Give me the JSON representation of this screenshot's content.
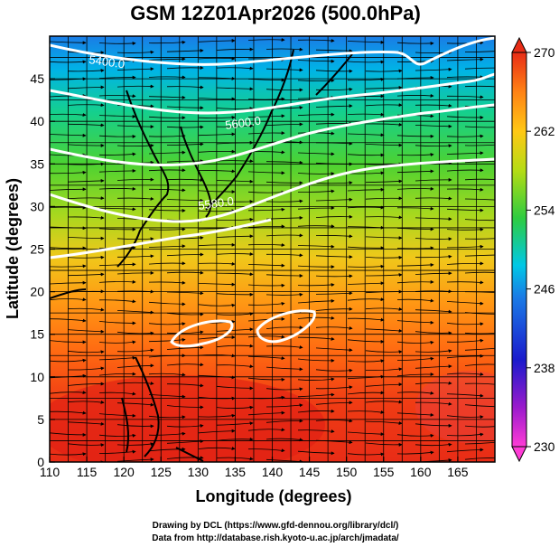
{
  "title": "GSM 12Z01Apr2026 (500.0hPa)",
  "x_axis": {
    "label": "Longitude (degrees)",
    "range": [
      110,
      170
    ],
    "ticks": [
      "110",
      "115",
      "120",
      "125",
      "130",
      "135",
      "140",
      "145",
      "150",
      "155",
      "160",
      "165"
    ]
  },
  "y_axis": {
    "label": "Latitude  (degrees)",
    "range": [
      0,
      50
    ],
    "ticks": [
      "0",
      "5",
      "10",
      "15",
      "20",
      "25",
      "30",
      "35",
      "40",
      "45"
    ]
  },
  "colorbar": {
    "labels": [
      "230",
      "238",
      "246",
      "254",
      "262",
      "270"
    ],
    "range": [
      230,
      270
    ]
  },
  "contours": {
    "labels": [
      "5400.0",
      "5580.0",
      "5600.0"
    ]
  },
  "credits": {
    "line1": "Drawing by DCL (https://www.gfd-dennou.org/library/dcl/)",
    "line2": "Data from http://database.rish.kyoto-u.ac.jp/arch/jmadata/"
  },
  "colors": {
    "hot": "#e8281a",
    "warm": "#ff8c00",
    "mid": "#2ecc40",
    "cool": "#00b4e6",
    "cold": "#1a3cd6",
    "coldest": "#ff3cd6",
    "contour": "#ffffff"
  }
}
